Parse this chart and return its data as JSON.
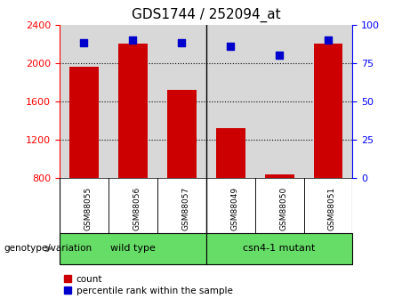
{
  "title": "GDS1744 / 252094_at",
  "samples": [
    "GSM88055",
    "GSM88056",
    "GSM88057",
    "GSM88049",
    "GSM88050",
    "GSM88051"
  ],
  "counts": [
    1960,
    2200,
    1720,
    1320,
    840,
    2200
  ],
  "percentile_ranks": [
    88,
    90,
    88,
    86,
    80,
    90
  ],
  "ylim_left": [
    800,
    2400
  ],
  "ylim_right": [
    0,
    100
  ],
  "yticks_left": [
    800,
    1200,
    1600,
    2000,
    2400
  ],
  "yticks_right": [
    0,
    25,
    50,
    75,
    100
  ],
  "bar_color": "#cc0000",
  "dot_color": "#0000cc",
  "bar_bottom": 800,
  "group_label": "genotype/variation",
  "legend_count_label": "count",
  "legend_pct_label": "percentile rank within the sample",
  "title_fontsize": 11,
  "tick_fontsize": 8,
  "background_color": "#ffffff",
  "plot_bg_color": "#d8d8d8",
  "group_bg_color": "#66dd66",
  "sample_bg_color": "#c8c8c8"
}
